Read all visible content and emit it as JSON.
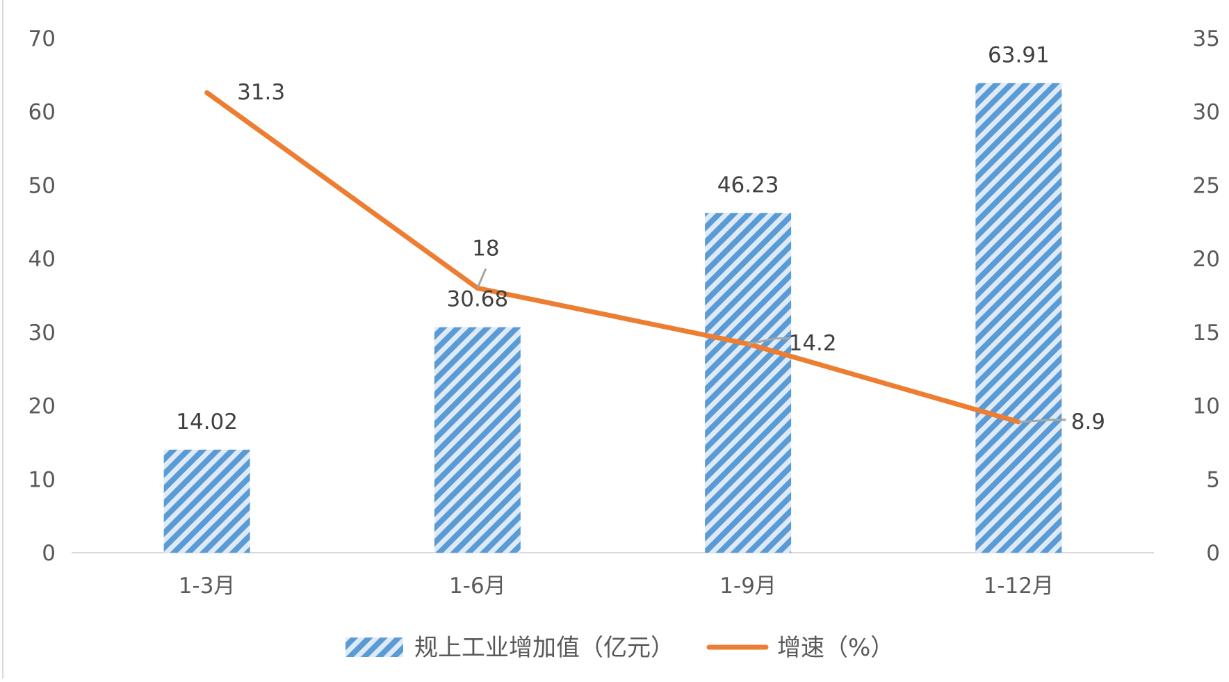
{
  "chart_data": {
    "type": "bar",
    "categories": [
      "1-3月",
      "1-6月",
      "1-9月",
      "1-12月"
    ],
    "series": [
      {
        "name": "规上工业增加值（亿元）",
        "type": "bar",
        "axis": "left",
        "values": [
          14.02,
          30.68,
          46.23,
          63.91
        ],
        "data_labels": [
          "14.02",
          "30.68",
          "46.23",
          "63.91"
        ]
      },
      {
        "name": "增速（%）",
        "type": "line",
        "axis": "right",
        "values": [
          31.3,
          18,
          14.2,
          8.9
        ],
        "data_labels": [
          "31.3",
          "18",
          "14.2",
          "8.9"
        ]
      }
    ],
    "y_left": {
      "ylim": [
        0,
        70
      ],
      "ticks": [
        "0",
        "10",
        "20",
        "30",
        "40",
        "50",
        "60",
        "70"
      ]
    },
    "y_right": {
      "ylim": [
        0,
        35
      ],
      "ticks": [
        "0",
        "5",
        "10",
        "15",
        "20",
        "25",
        "30",
        "35"
      ]
    },
    "grid": false,
    "legend_position": "bottom",
    "colors": {
      "bar_stripe": "#5b9bd5",
      "bar_background": "#deebf7",
      "line": "#ed7d31",
      "axis": "#d9d9d9",
      "text": "#595959",
      "label": "#404040",
      "leader": "#a6a6a6"
    }
  }
}
